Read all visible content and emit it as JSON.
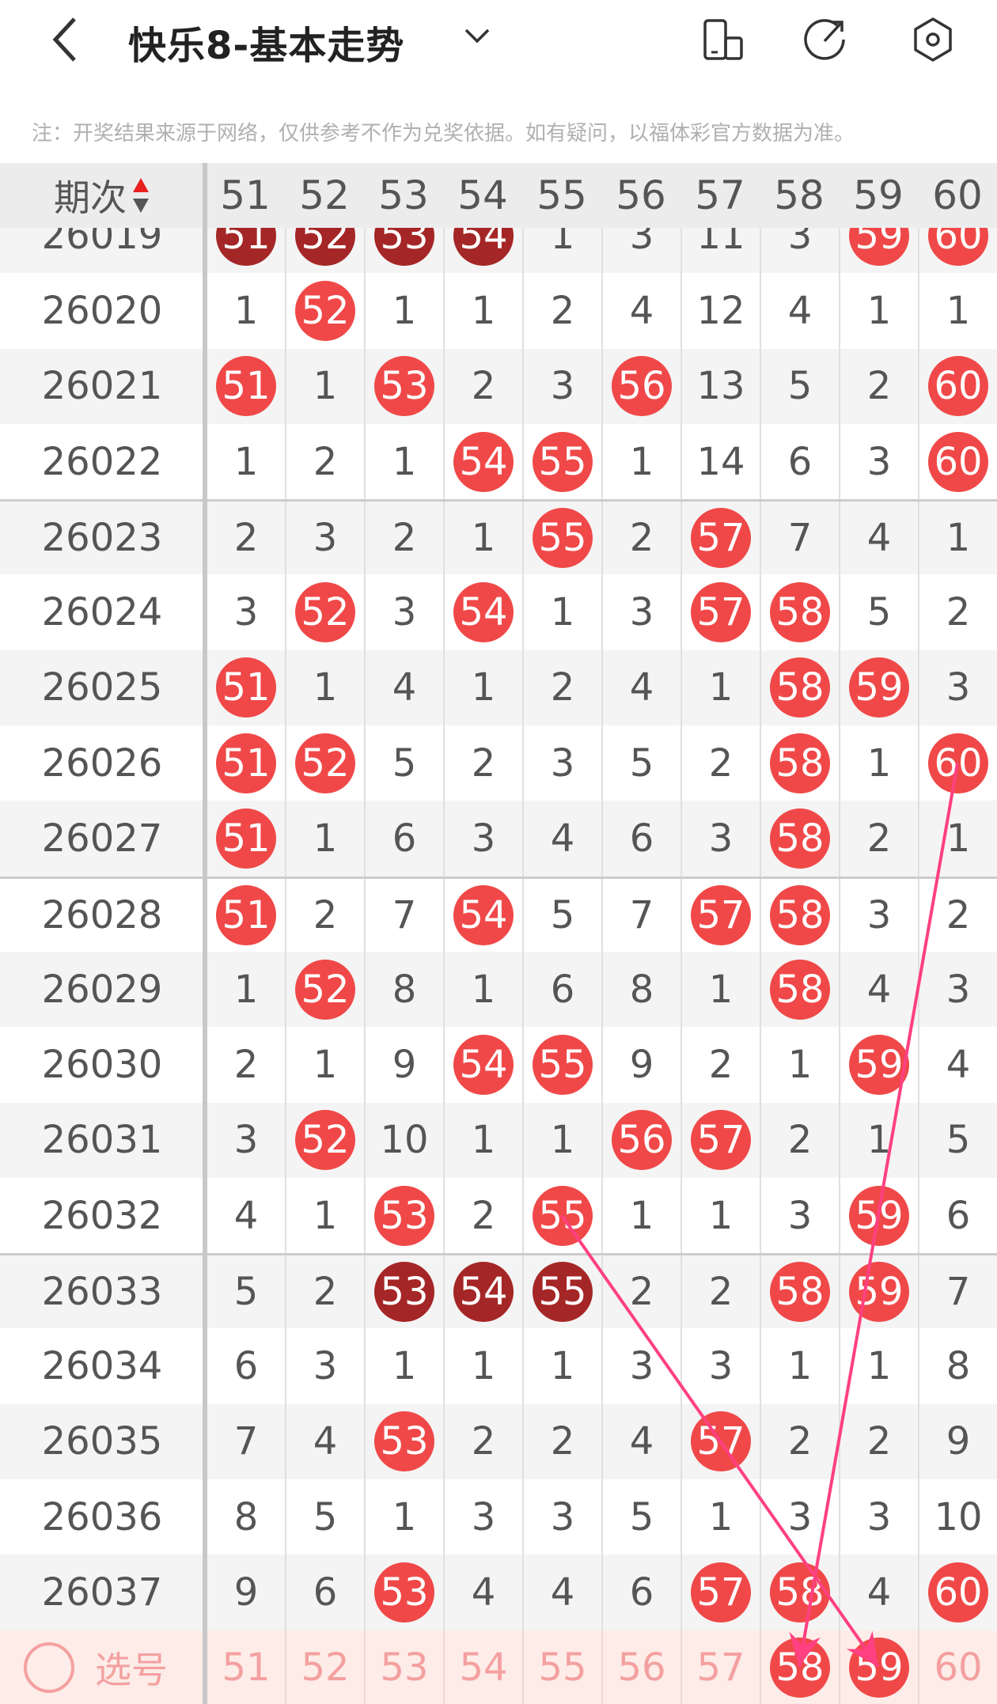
{
  "header": {
    "title": "快乐8-基本走势",
    "icons": [
      "back-icon",
      "chevron-down-icon",
      "layout-toggle-icon",
      "share-icon",
      "settings-icon"
    ]
  },
  "note": "注：开奖结果来源于网络，仅供参考不作为兑奖依据。如有疑问，以福体彩官方数据为准。",
  "table": {
    "period_header": "期次",
    "columns": [
      "51",
      "52",
      "53",
      "54",
      "55",
      "56",
      "57",
      "58",
      "59",
      "60"
    ],
    "legend": {
      "plain": "miss count",
      "*": "drawn number (red ball)",
      "**": "drawn number (dark red ball)"
    },
    "rows": [
      {
        "period": "26019",
        "cells": [
          "**51",
          "**52",
          "**53",
          "**54",
          "1",
          "3",
          "11",
          "3",
          "*59",
          "*60"
        ]
      },
      {
        "period": "26020",
        "cells": [
          "1",
          "*52",
          "1",
          "1",
          "2",
          "4",
          "12",
          "4",
          "1",
          "1"
        ]
      },
      {
        "period": "26021",
        "cells": [
          "*51",
          "1",
          "*53",
          "2",
          "3",
          "*56",
          "13",
          "5",
          "2",
          "*60"
        ]
      },
      {
        "period": "26022",
        "cells": [
          "1",
          "2",
          "1",
          "*54",
          "*55",
          "1",
          "14",
          "6",
          "3",
          "*60"
        ]
      },
      {
        "period": "26023",
        "cells": [
          "2",
          "3",
          "2",
          "1",
          "*55",
          "2",
          "*57",
          "7",
          "4",
          "1"
        ]
      },
      {
        "period": "26024",
        "cells": [
          "3",
          "*52",
          "3",
          "*54",
          "1",
          "3",
          "*57",
          "*58",
          "5",
          "2"
        ]
      },
      {
        "period": "26025",
        "cells": [
          "*51",
          "1",
          "4",
          "1",
          "2",
          "4",
          "1",
          "*58",
          "*59",
          "3"
        ]
      },
      {
        "period": "26026",
        "cells": [
          "*51",
          "*52",
          "5",
          "2",
          "3",
          "5",
          "2",
          "*58",
          "1",
          "*60"
        ]
      },
      {
        "period": "26027",
        "cells": [
          "*51",
          "1",
          "6",
          "3",
          "4",
          "6",
          "3",
          "*58",
          "2",
          "1"
        ]
      },
      {
        "period": "26028",
        "cells": [
          "*51",
          "2",
          "7",
          "*54",
          "5",
          "7",
          "*57",
          "*58",
          "3",
          "2"
        ]
      },
      {
        "period": "26029",
        "cells": [
          "1",
          "*52",
          "8",
          "1",
          "6",
          "8",
          "1",
          "*58",
          "4",
          "3"
        ]
      },
      {
        "period": "26030",
        "cells": [
          "2",
          "1",
          "9",
          "*54",
          "*55",
          "9",
          "2",
          "1",
          "*59",
          "4"
        ]
      },
      {
        "period": "26031",
        "cells": [
          "3",
          "*52",
          "10",
          "1",
          "1",
          "*56",
          "*57",
          "2",
          "1",
          "5"
        ]
      },
      {
        "period": "26032",
        "cells": [
          "4",
          "1",
          "*53",
          "2",
          "*55",
          "1",
          "1",
          "3",
          "*59",
          "6"
        ]
      },
      {
        "period": "26033",
        "cells": [
          "5",
          "2",
          "**53",
          "**54",
          "**55",
          "2",
          "2",
          "*58",
          "*59",
          "7"
        ]
      },
      {
        "period": "26034",
        "cells": [
          "6",
          "3",
          "1",
          "1",
          "1",
          "3",
          "3",
          "1",
          "1",
          "8"
        ]
      },
      {
        "period": "26035",
        "cells": [
          "7",
          "4",
          "*53",
          "2",
          "2",
          "4",
          "*57",
          "2",
          "2",
          "9"
        ]
      },
      {
        "period": "26036",
        "cells": [
          "8",
          "5",
          "1",
          "3",
          "3",
          "5",
          "1",
          "3",
          "3",
          "10"
        ]
      },
      {
        "period": "26037",
        "cells": [
          "9",
          "6",
          "*53",
          "4",
          "4",
          "6",
          "*57",
          "*58",
          "4",
          "*60"
        ]
      }
    ]
  },
  "select_row": {
    "label": "选号",
    "numbers": [
      "51",
      "52",
      "53",
      "54",
      "55",
      "56",
      "57",
      "58",
      "59",
      "60"
    ],
    "selected": [
      "58",
      "59"
    ]
  },
  "colors": {
    "ball": "#f04848",
    "ball_dark": "#a52626",
    "arrow": "#ff4081",
    "select_bg": "#fdece8"
  },
  "arrows": [
    {
      "from": {
        "period": "26032",
        "number": "55"
      },
      "to": "59"
    },
    {
      "from": {
        "period": "26026",
        "number": "60"
      },
      "to": "58"
    }
  ]
}
